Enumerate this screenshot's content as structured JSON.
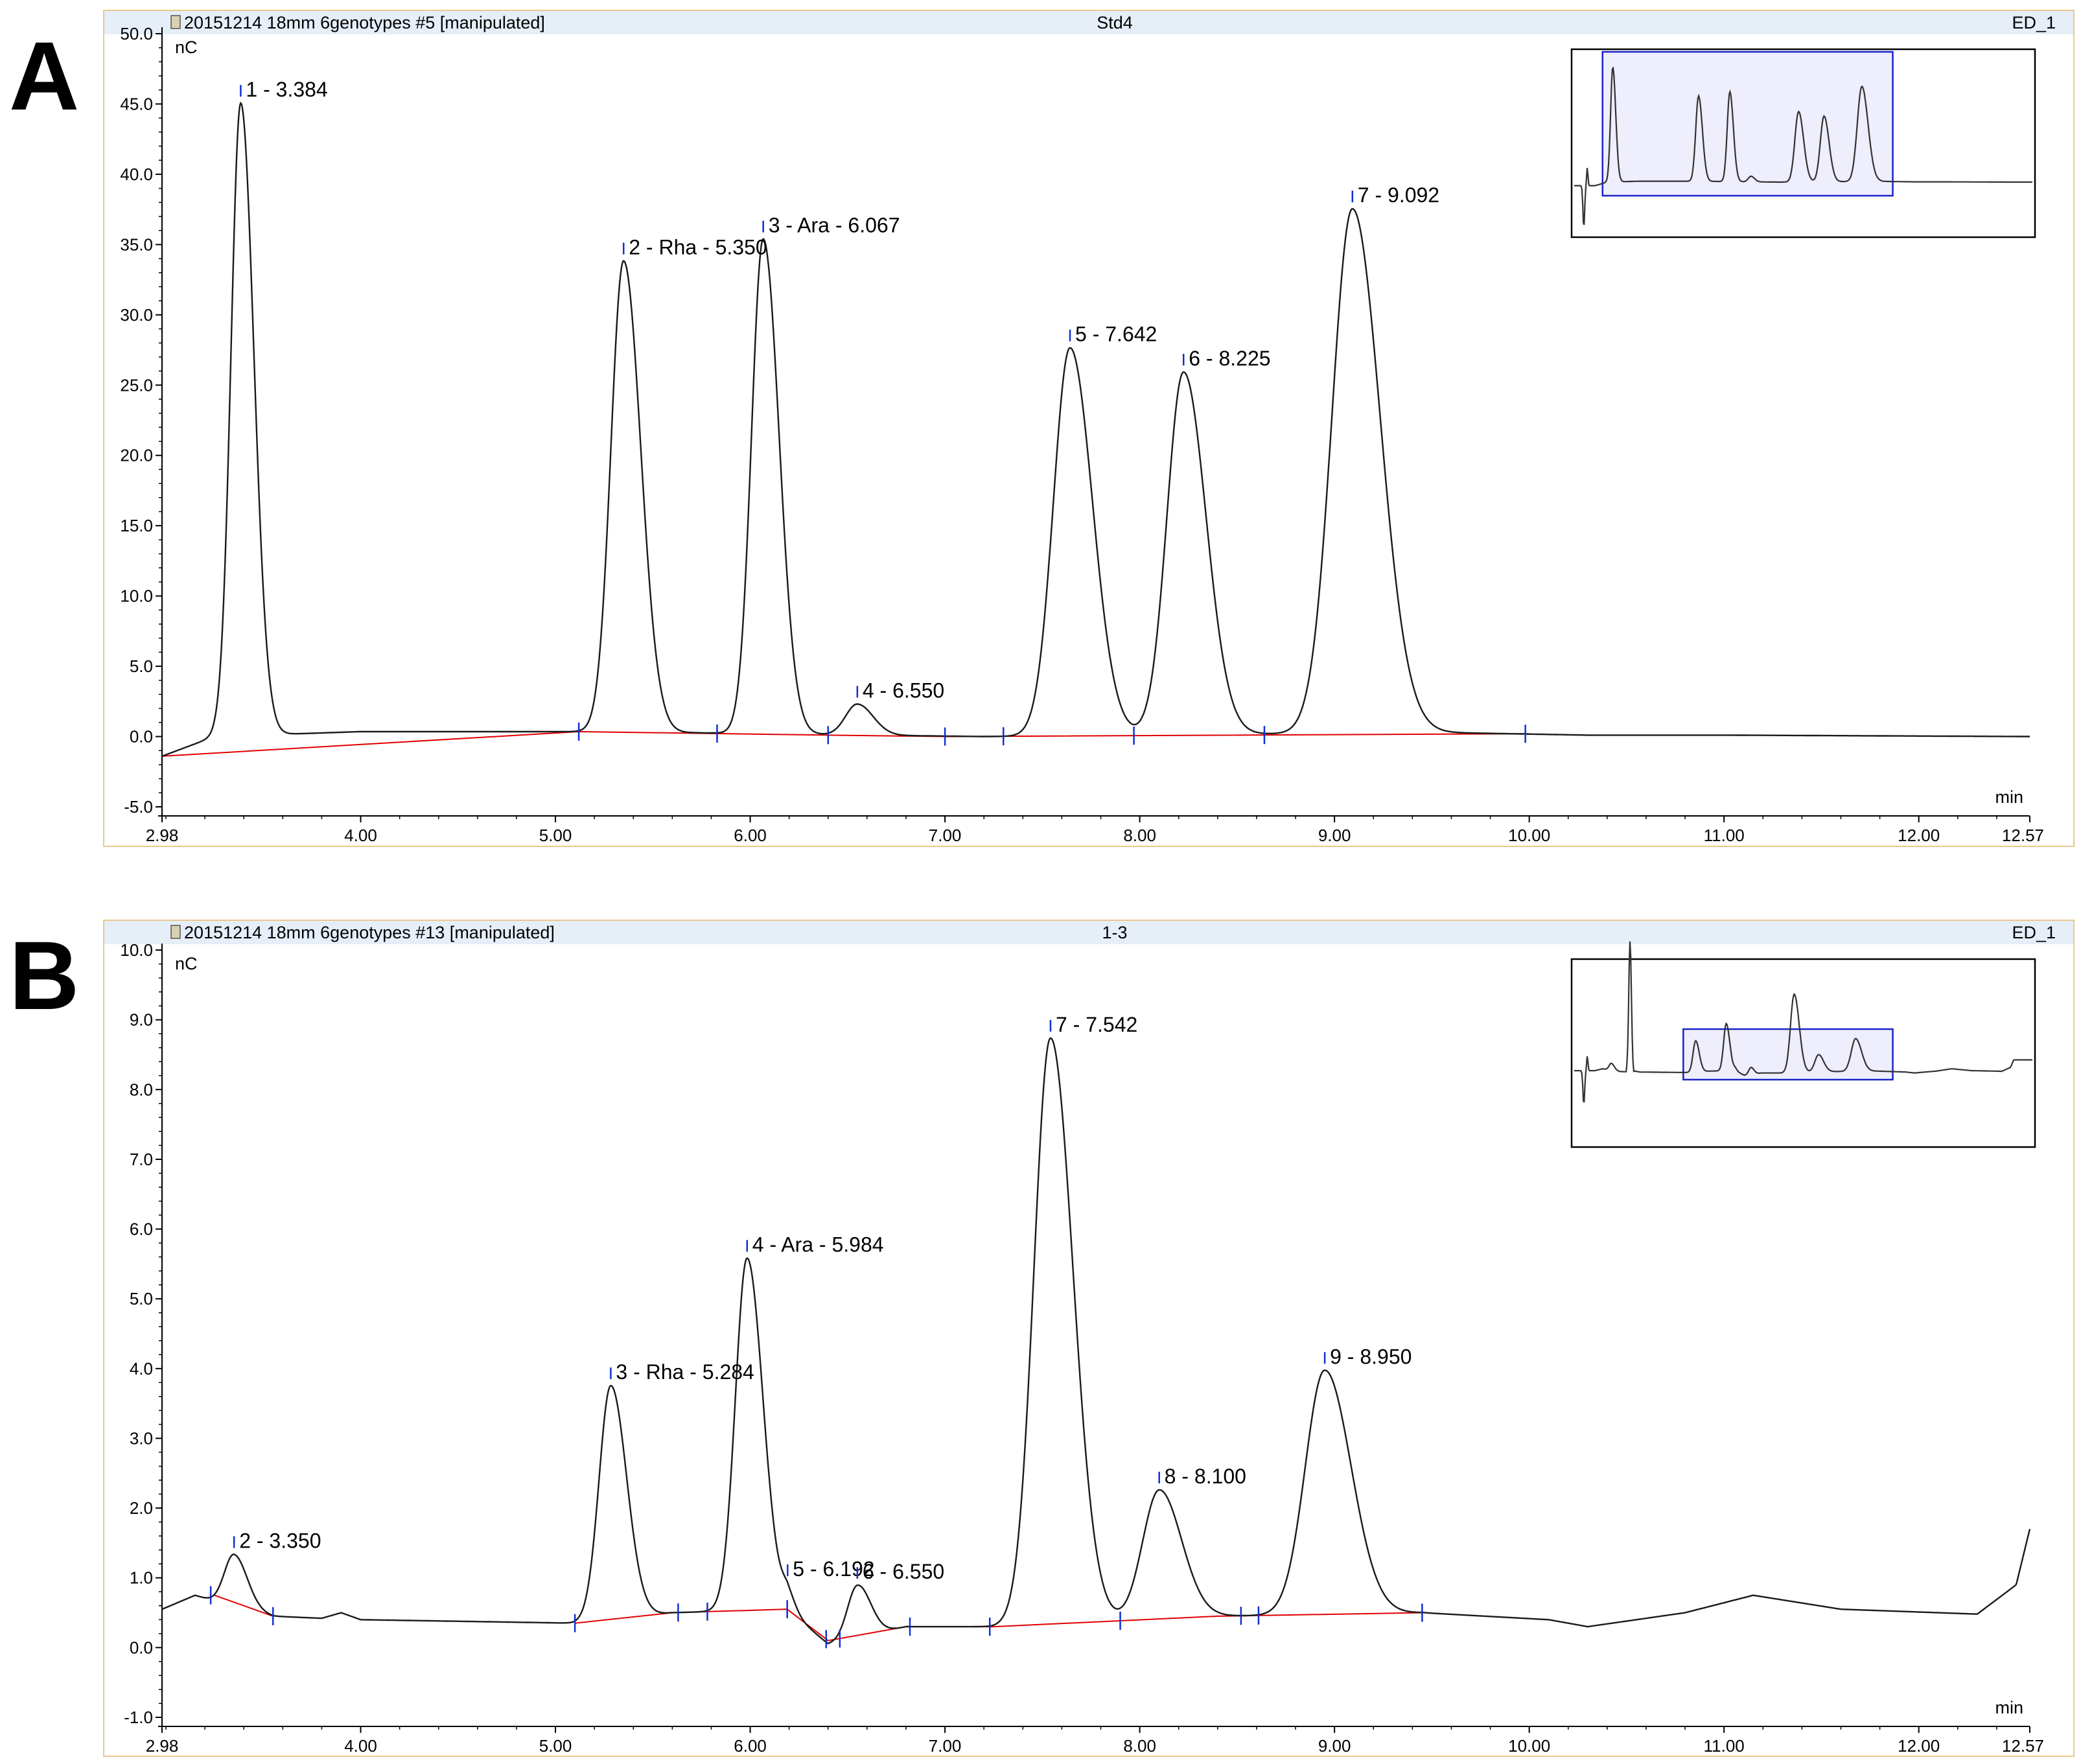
{
  "chart_data": [
    {
      "panel_letter": "A",
      "type": "line",
      "title_left": "20151214 18mm 6genotypes #5 [manipulated]",
      "title_center": "Std4",
      "title_right": "ED_1",
      "ylabel": "nC",
      "xlabel": "min",
      "xlim": [
        2.98,
        12.57
      ],
      "ylim": [
        -5.0,
        50.0
      ],
      "x_ticks": [
        "2.98",
        "4.00",
        "5.00",
        "6.00",
        "7.00",
        "8.00",
        "9.00",
        "10.00",
        "11.00",
        "12.00",
        "12.57"
      ],
      "y_ticks": [
        "-5.0",
        "0.0",
        "5.0",
        "10.0",
        "15.0",
        "20.0",
        "25.0",
        "30.0",
        "35.0",
        "40.0",
        "45.0",
        "50.0"
      ],
      "baseline_y": -1.4,
      "drift": [
        [
          2.98,
          -1.4
        ],
        [
          3.25,
          0.0
        ],
        [
          4.0,
          0.35
        ],
        [
          5.3,
          0.35
        ],
        [
          6.6,
          0.1
        ],
        [
          7.2,
          0.0
        ],
        [
          9.5,
          0.3
        ],
        [
          10.3,
          0.1
        ],
        [
          11.0,
          0.1
        ],
        [
          12.57,
          0.0
        ]
      ],
      "peaks": [
        {
          "label": "1 - 3.384",
          "rt": 3.384,
          "height": 45.0,
          "width": 0.05
        },
        {
          "label": "2 - Rha - 5.350",
          "rt": 5.35,
          "height": 33.5,
          "width": 0.065
        },
        {
          "label": "3 - Ara - 6.067",
          "rt": 6.067,
          "height": 35.2,
          "width": 0.06
        },
        {
          "label": "4 - 6.550",
          "rt": 6.55,
          "height": 2.2,
          "width": 0.06
        },
        {
          "label": "5 - 7.642",
          "rt": 7.642,
          "height": 27.6,
          "width": 0.085
        },
        {
          "label": "6 - 8.225",
          "rt": 8.225,
          "height": 25.8,
          "width": 0.085
        },
        {
          "label": "7 - 9.092",
          "rt": 9.092,
          "height": 37.3,
          "width": 0.105
        }
      ],
      "integration_baseline": [
        [
          2.98,
          -1.4
        ],
        [
          5.12,
          0.35
        ],
        [
          6.4,
          0.1
        ],
        [
          7.0,
          0.0
        ],
        [
          10.0,
          0.2
        ]
      ],
      "integration_marks": [
        5.12,
        5.83,
        6.4,
        7.0,
        7.3,
        7.97,
        8.64,
        9.98
      ],
      "overview_box": {
        "x_from": 3.15,
        "x_to": 9.8
      }
    },
    {
      "panel_letter": "B",
      "type": "line",
      "title_left": "20151214 18mm 6genotypes #13 [manipulated]",
      "title_center": "1-3",
      "title_right": "ED_1",
      "ylabel": "nC",
      "xlabel": "min",
      "xlim": [
        2.98,
        12.57
      ],
      "ylim": [
        -1.0,
        10.0
      ],
      "x_ticks": [
        "2.98",
        "4.00",
        "5.00",
        "6.00",
        "7.00",
        "8.00",
        "9.00",
        "10.00",
        "11.00",
        "12.00",
        "12.57"
      ],
      "y_ticks": [
        "-1.0",
        "0.0",
        "1.0",
        "2.0",
        "3.0",
        "4.0",
        "5.0",
        "6.0",
        "7.0",
        "8.0",
        "9.0",
        "10.0"
      ],
      "drift": [
        [
          2.98,
          0.55
        ],
        [
          3.15,
          0.75
        ],
        [
          3.3,
          0.62
        ],
        [
          3.55,
          0.45
        ],
        [
          3.8,
          0.42
        ],
        [
          3.9,
          0.5
        ],
        [
          4.0,
          0.4
        ],
        [
          5.1,
          0.35
        ],
        [
          5.6,
          0.5
        ],
        [
          6.19,
          0.55
        ],
        [
          6.4,
          0.05
        ],
        [
          6.8,
          0.3
        ],
        [
          7.25,
          0.3
        ],
        [
          8.4,
          0.45
        ],
        [
          9.45,
          0.5
        ],
        [
          10.1,
          0.4
        ],
        [
          10.3,
          0.3
        ],
        [
          10.8,
          0.5
        ],
        [
          11.15,
          0.75
        ],
        [
          11.6,
          0.55
        ],
        [
          12.3,
          0.48
        ],
        [
          12.5,
          0.9
        ],
        [
          12.57,
          1.7
        ]
      ],
      "peaks": [
        {
          "label": "2 - 3.350",
          "rt": 3.35,
          "height": 0.75,
          "width": 0.05
        },
        {
          "label": "3 - Rha - 5.284",
          "rt": 5.284,
          "height": 3.35,
          "width": 0.06
        },
        {
          "label": "4 - Ara - 5.984",
          "rt": 5.984,
          "height": 5.05,
          "width": 0.06
        },
        {
          "label": "5 - 6.192",
          "rt": 6.192,
          "height": 0.2,
          "width": 0.03
        },
        {
          "label": "6 - 6.550",
          "rt": 6.55,
          "height": 0.75,
          "width": 0.05
        },
        {
          "label": "7 - 7.542",
          "rt": 7.542,
          "height": 8.4,
          "width": 0.085
        },
        {
          "label": "8 - 8.100",
          "rt": 8.1,
          "height": 1.85,
          "width": 0.085
        },
        {
          "label": "9 - 8.950",
          "rt": 8.95,
          "height": 3.5,
          "width": 0.1
        }
      ],
      "integration_baseline": [
        [
          3.25,
          0.75
        ],
        [
          3.55,
          0.45
        ],
        null,
        [
          5.1,
          0.35
        ],
        [
          5.6,
          0.5
        ],
        [
          6.19,
          0.55
        ],
        [
          6.4,
          0.1
        ],
        [
          6.8,
          0.3
        ],
        [
          7.25,
          0.3
        ],
        [
          8.4,
          0.45
        ],
        [
          9.45,
          0.5
        ]
      ],
      "integration_marks": [
        3.23,
        3.55,
        5.1,
        5.63,
        5.78,
        6.19,
        6.39,
        6.46,
        6.82,
        7.23,
        7.9,
        8.52,
        8.61,
        9.45
      ],
      "overview_box": {
        "x_from": 5.0,
        "x_to": 9.8
      }
    }
  ]
}
